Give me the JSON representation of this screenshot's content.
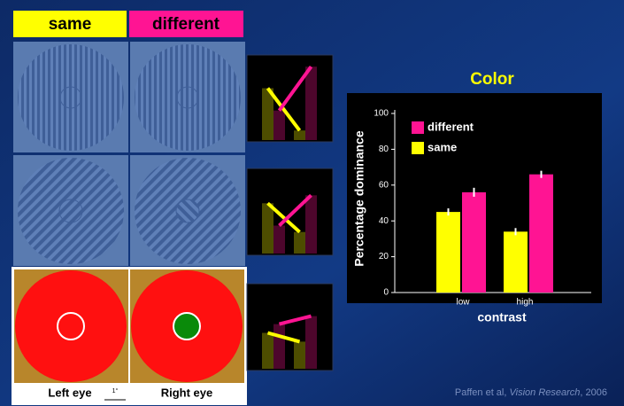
{
  "header": {
    "same": "same",
    "different": "different"
  },
  "panels": {
    "left_eye": "Left eye",
    "right_eye": "Right eye",
    "scale_label": "1°"
  },
  "citation": {
    "authors": "Paffen et al, ",
    "journal": "Vision Research",
    "year": ", 2006"
  },
  "chart_data": [
    {
      "type": "bar",
      "title": "Color",
      "xlabel": "contrast",
      "ylabel": "Percentage dominance",
      "categories": [
        "low",
        "high"
      ],
      "series": [
        {
          "name": "same",
          "color": "#ffff00",
          "values": [
            45,
            34
          ],
          "errors": [
            2,
            2
          ]
        },
        {
          "name": "different",
          "color": "#ff1493",
          "values": [
            56,
            66
          ],
          "errors": [
            2.5,
            2
          ]
        }
      ],
      "ylim": [
        0,
        100
      ],
      "yticks": [
        0,
        20,
        40,
        60,
        80,
        100
      ],
      "legend": "upper left"
    },
    {
      "type": "bar",
      "connect_series": true,
      "categories": [
        null,
        null
      ],
      "series": [
        {
          "color": "#ffff00",
          "values": [
            65,
            12
          ]
        },
        {
          "color": "#ff1493",
          "values": [
            37,
            92
          ]
        }
      ],
      "ylim": [
        0,
        100
      ]
    },
    {
      "type": "bar",
      "connect_series": true,
      "categories": [
        null,
        null
      ],
      "series": [
        {
          "color": "#ffff00",
          "values": [
            63,
            27
          ]
        },
        {
          "color": "#ff1493",
          "values": [
            35,
            73
          ]
        }
      ],
      "ylim": [
        0,
        100
      ]
    },
    {
      "type": "bar",
      "connect_series": true,
      "categories": [
        null,
        null
      ],
      "series": [
        {
          "color": "#ffff00",
          "values": [
            45,
            34
          ]
        },
        {
          "color": "#ff1493",
          "values": [
            56,
            66
          ]
        }
      ],
      "ylim": [
        0,
        100
      ]
    }
  ]
}
